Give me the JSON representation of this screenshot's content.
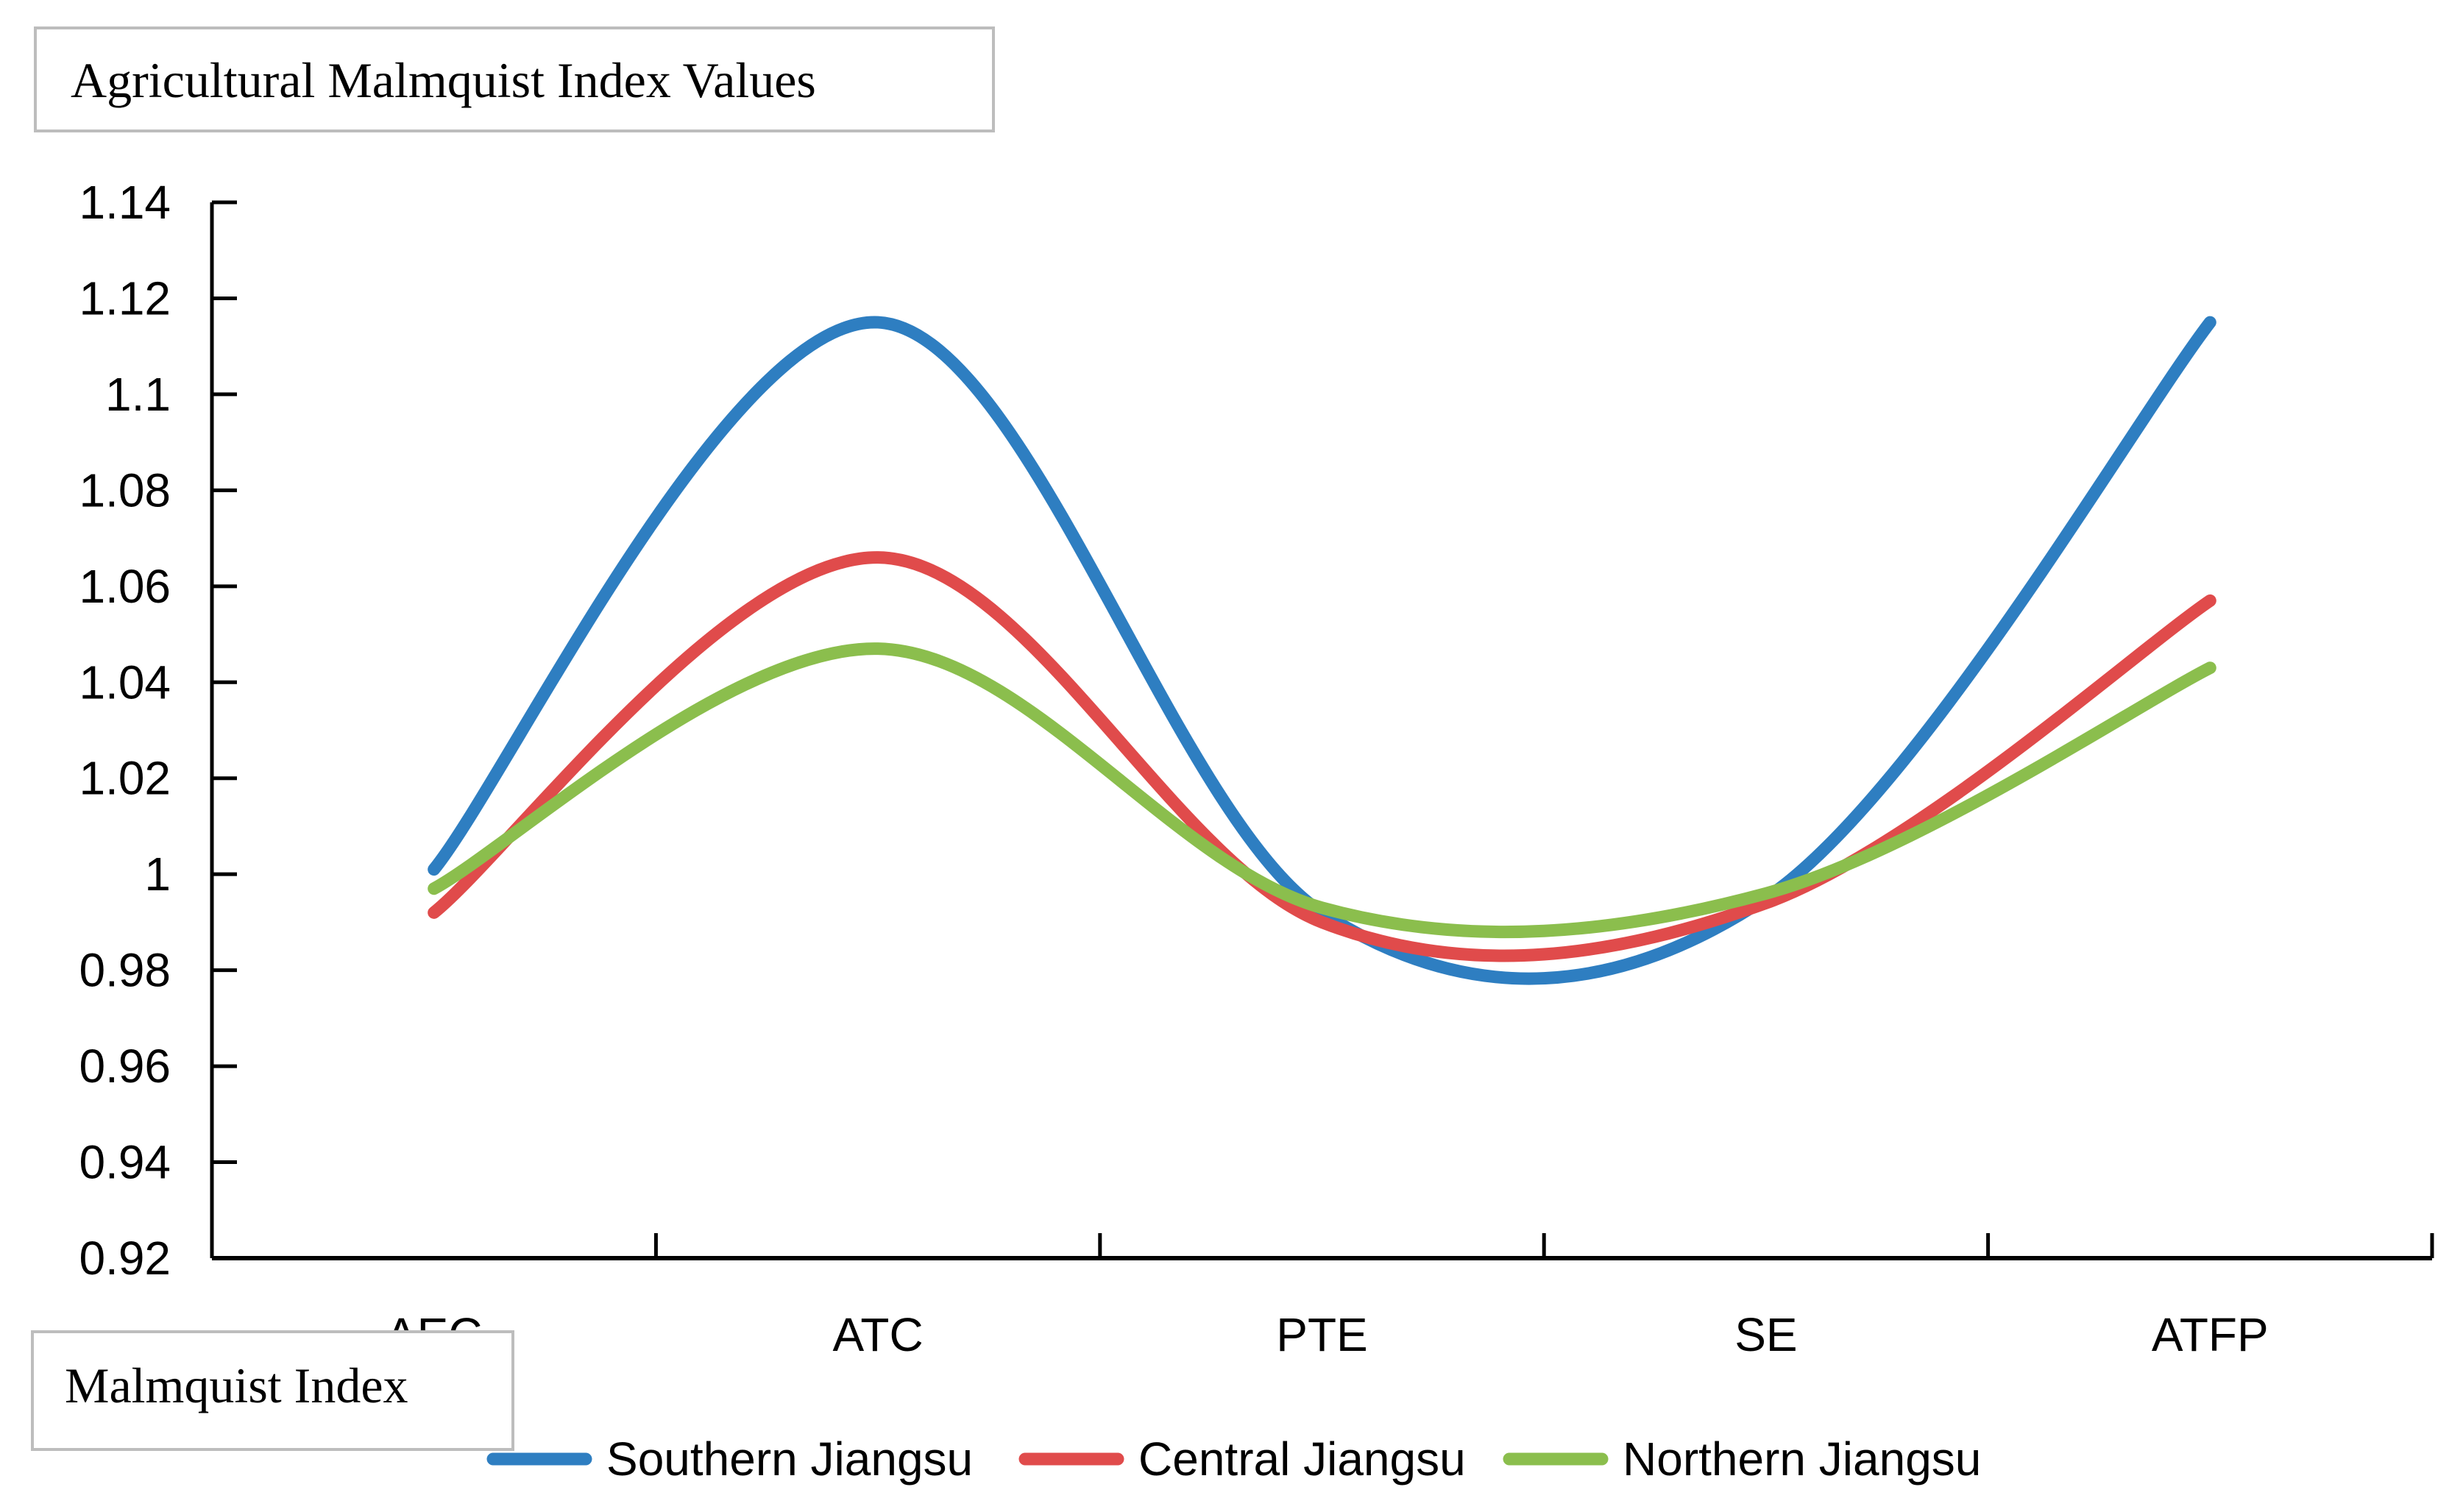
{
  "chart_data": {
    "type": "line",
    "smooth": true,
    "title": "Agricultural Malmquist Index Values",
    "xlabel": "Malmquist Index",
    "ylabel": "",
    "categories": [
      "AEC",
      "ATC",
      "PTE",
      "SE",
      "ATFP"
    ],
    "ylim": [
      0.92,
      1.14
    ],
    "yticks": [
      0.92,
      0.94,
      0.96,
      0.98,
      1,
      1.02,
      1.04,
      1.06,
      1.08,
      1.1,
      1.12,
      1.14
    ],
    "ytick_labels": [
      "0.92",
      "0.94",
      "0.96",
      "0.98",
      "1",
      "1.02",
      "1.04",
      "1.06",
      "1.08",
      "1.1",
      "1.12",
      "1.14"
    ],
    "series": [
      {
        "name": "Southern Jiangsu",
        "color": "#2E7EC1",
        "values": [
          1.001,
          1.115,
          0.992,
          0.995,
          1.115
        ]
      },
      {
        "name": "Central Jiangsu",
        "color": "#E04B4B",
        "values": [
          0.992,
          1.066,
          0.99,
          0.994,
          1.057
        ]
      },
      {
        "name": "Northern Jiangsu",
        "color": "#8BBE4D",
        "values": [
          0.997,
          1.047,
          0.993,
          0.996,
          1.043
        ]
      }
    ],
    "legend_position": "bottom",
    "grid": false
  }
}
